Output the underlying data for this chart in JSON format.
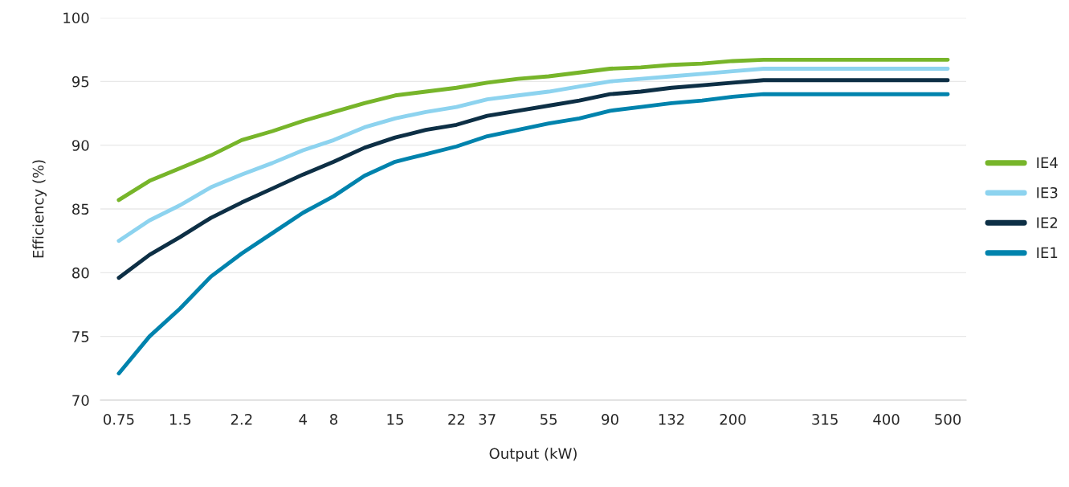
{
  "chart_data": {
    "type": "line",
    "xlabel": "Output (kW)",
    "ylabel": "Efficiency (%)",
    "categories": [
      "0.75",
      null,
      "1.5",
      null,
      "2.2",
      null,
      "4",
      "8",
      null,
      "15",
      null,
      "22",
      "37",
      null,
      "55",
      null,
      "90",
      null,
      "132",
      null,
      "200",
      null,
      null,
      "315",
      null,
      "400",
      null,
      "500"
    ],
    "series": [
      {
        "name": "IE4",
        "color": "#77b52a",
        "values": [
          85.7,
          87.2,
          88.2,
          89.2,
          90.4,
          91.1,
          91.9,
          92.6,
          93.3,
          93.9,
          94.2,
          94.5,
          94.9,
          95.2,
          95.4,
          95.7,
          96.0,
          96.1,
          96.3,
          96.4,
          96.6,
          96.7,
          96.7,
          96.7,
          96.7,
          96.7,
          96.7,
          96.7
        ]
      },
      {
        "name": "IE3",
        "color": "#8dd3ef",
        "values": [
          82.5,
          84.1,
          85.3,
          86.7,
          87.7,
          88.6,
          89.6,
          90.4,
          91.4,
          92.1,
          92.6,
          93.0,
          93.6,
          93.9,
          94.2,
          94.6,
          95.0,
          95.2,
          95.4,
          95.6,
          95.8,
          96.0,
          96.0,
          96.0,
          96.0,
          96.0,
          96.0,
          96.0
        ]
      },
      {
        "name": "IE2",
        "color": "#0d2f45",
        "values": [
          79.6,
          81.4,
          82.8,
          84.3,
          85.5,
          86.6,
          87.7,
          88.7,
          89.8,
          90.6,
          91.2,
          91.6,
          92.3,
          92.7,
          93.1,
          93.5,
          94.0,
          94.2,
          94.5,
          94.7,
          94.9,
          95.1,
          95.1,
          95.1,
          95.1,
          95.1,
          95.1,
          95.1
        ]
      },
      {
        "name": "IE1",
        "color": "#0083ad",
        "values": [
          72.1,
          75.0,
          77.2,
          79.7,
          81.5,
          83.1,
          84.7,
          86.0,
          87.6,
          88.7,
          89.3,
          89.9,
          90.7,
          91.2,
          91.7,
          92.1,
          92.7,
          93.0,
          93.3,
          93.5,
          93.8,
          94.0,
          94.0,
          94.0,
          94.0,
          94.0,
          94.0,
          94.0
        ]
      }
    ],
    "ylim": [
      70,
      100
    ],
    "yticks": [
      70,
      75,
      80,
      85,
      90,
      95,
      100
    ],
    "grid": "y",
    "legend": "right"
  }
}
